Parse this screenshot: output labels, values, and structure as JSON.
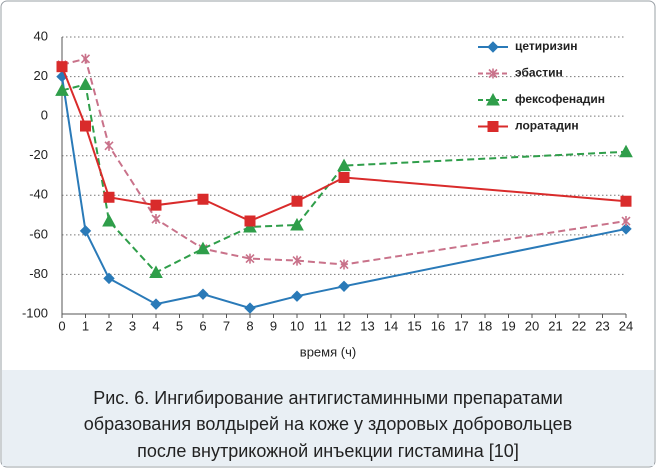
{
  "chart_data": {
    "type": "line",
    "x": [
      0,
      1,
      2,
      4,
      6,
      8,
      10,
      12,
      24
    ],
    "series": [
      {
        "name": "цетиризин",
        "color": "#2a7ab8",
        "marker": "diamond",
        "dashed": false,
        "values": [
          20,
          -58,
          -82,
          -95,
          -90,
          -97,
          -91,
          -86,
          -57
        ]
      },
      {
        "name": "эбастин",
        "color": "#c9728a",
        "marker": "asterisk",
        "dashed": true,
        "values": [
          26,
          29,
          -15,
          -52,
          -67,
          -72,
          -73,
          -75,
          -53
        ]
      },
      {
        "name": "фексофенадин",
        "color": "#2f9e4a",
        "marker": "triangle",
        "dashed": true,
        "values": [
          13,
          16,
          -53,
          -79,
          -67,
          -56,
          -55,
          -25,
          -18
        ]
      },
      {
        "name": "лоратадин",
        "color": "#d92b2b",
        "marker": "square",
        "dashed": false,
        "values": [
          25,
          -5,
          -41,
          -45,
          -42,
          -53,
          -43,
          -31,
          -43
        ]
      }
    ],
    "xlim": [
      0,
      24
    ],
    "xticks": [
      0,
      1,
      2,
      3,
      4,
      5,
      6,
      7,
      8,
      9,
      10,
      11,
      12,
      13,
      14,
      15,
      16,
      17,
      18,
      19,
      20,
      21,
      22,
      23,
      24
    ],
    "ylim": [
      -100,
      40
    ],
    "yticks": [
      -100,
      -80,
      -60,
      -40,
      -20,
      0,
      20,
      40
    ],
    "xlabel": "время (ч)",
    "grid": true,
    "legend": "upper right",
    "caption": [
      "Рис. 6. Ингибирование антигистаминными препаратами",
      "образования волдырей на коже у здоровых добровольцев",
      "после внутрикожной инъекции гистамина [10]"
    ]
  }
}
